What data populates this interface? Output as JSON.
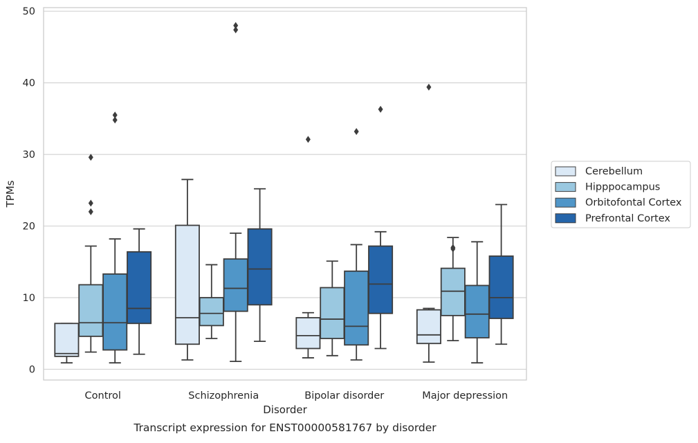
{
  "chart_data": {
    "type": "box",
    "xlabel": "Disorder",
    "ylabel": "TPMs",
    "caption": "Transcript expression for ENST00000581767 by disorder",
    "ylim": [
      -1.5,
      50.5
    ],
    "yticks": [
      0,
      10,
      20,
      30,
      40,
      50
    ],
    "grid": "horizontal",
    "legend_position": "right, outside plot",
    "categories": [
      "Control",
      "Schizophrenia",
      "Bipolar disorder",
      "Major depression"
    ],
    "series": [
      {
        "name": "Cerebellum",
        "color": "#dbe9f6",
        "boxes": [
          {
            "whisker_low": 0.9,
            "q1": 1.8,
            "median": 2.2,
            "q3": 6.4,
            "whisker_high": 6.4,
            "outliers": []
          },
          {
            "whisker_low": 1.3,
            "q1": 3.5,
            "median": 7.2,
            "q3": 20.1,
            "whisker_high": 26.5,
            "outliers": []
          },
          {
            "whisker_low": 1.6,
            "q1": 2.9,
            "median": 4.7,
            "q3": 7.2,
            "whisker_high": 7.9,
            "outliers": [
              32.1
            ]
          },
          {
            "whisker_low": 1.0,
            "q1": 3.6,
            "median": 4.8,
            "q3": 8.3,
            "whisker_high": 8.5,
            "outliers": [
              39.4
            ]
          }
        ]
      },
      {
        "name": "Hipppocampus",
        "color": "#9ac8e0",
        "boxes": [
          {
            "whisker_low": 2.4,
            "q1": 4.6,
            "median": 6.5,
            "q3": 11.8,
            "whisker_high": 17.2,
            "outliers": [
              22.0,
              23.2,
              29.6
            ]
          },
          {
            "whisker_low": 4.3,
            "q1": 6.1,
            "median": 7.8,
            "q3": 10.0,
            "whisker_high": 14.6,
            "outliers": []
          },
          {
            "whisker_low": 1.9,
            "q1": 4.3,
            "median": 7.0,
            "q3": 11.4,
            "whisker_high": 15.1,
            "outliers": []
          },
          {
            "whisker_low": 4.0,
            "q1": 7.5,
            "median": 10.9,
            "q3": 14.1,
            "whisker_high": 18.4,
            "outliers": [
              16.8,
              17.0
            ]
          }
        ]
      },
      {
        "name": "Orbitofontal Cortex",
        "color": "#5096c8",
        "boxes": [
          {
            "whisker_low": 0.9,
            "q1": 2.7,
            "median": 6.5,
            "q3": 13.3,
            "whisker_high": 18.2,
            "outliers": [
              34.8,
              35.5
            ]
          },
          {
            "whisker_low": 1.1,
            "q1": 8.1,
            "median": 11.3,
            "q3": 15.4,
            "whisker_high": 19.0,
            "outliers": [
              47.4,
              48.0
            ]
          },
          {
            "whisker_low": 1.3,
            "q1": 3.4,
            "median": 6.0,
            "q3": 13.7,
            "whisker_high": 17.4,
            "outliers": [
              33.2
            ]
          },
          {
            "whisker_low": 0.9,
            "q1": 4.4,
            "median": 7.7,
            "q3": 11.7,
            "whisker_high": 17.8,
            "outliers": []
          }
        ]
      },
      {
        "name": "Prefrontal Cortex",
        "color": "#2565aa",
        "boxes": [
          {
            "whisker_low": 2.1,
            "q1": 6.4,
            "median": 8.5,
            "q3": 16.4,
            "whisker_high": 19.6,
            "outliers": []
          },
          {
            "whisker_low": 3.9,
            "q1": 9.0,
            "median": 14.0,
            "q3": 19.6,
            "whisker_high": 25.2,
            "outliers": []
          },
          {
            "whisker_low": 2.9,
            "q1": 7.8,
            "median": 11.9,
            "q3": 17.2,
            "whisker_high": 19.2,
            "outliers": [
              36.3
            ]
          },
          {
            "whisker_low": 3.5,
            "q1": 7.1,
            "median": 10.0,
            "q3": 15.8,
            "whisker_high": 23.0,
            "outliers": []
          }
        ]
      }
    ]
  }
}
